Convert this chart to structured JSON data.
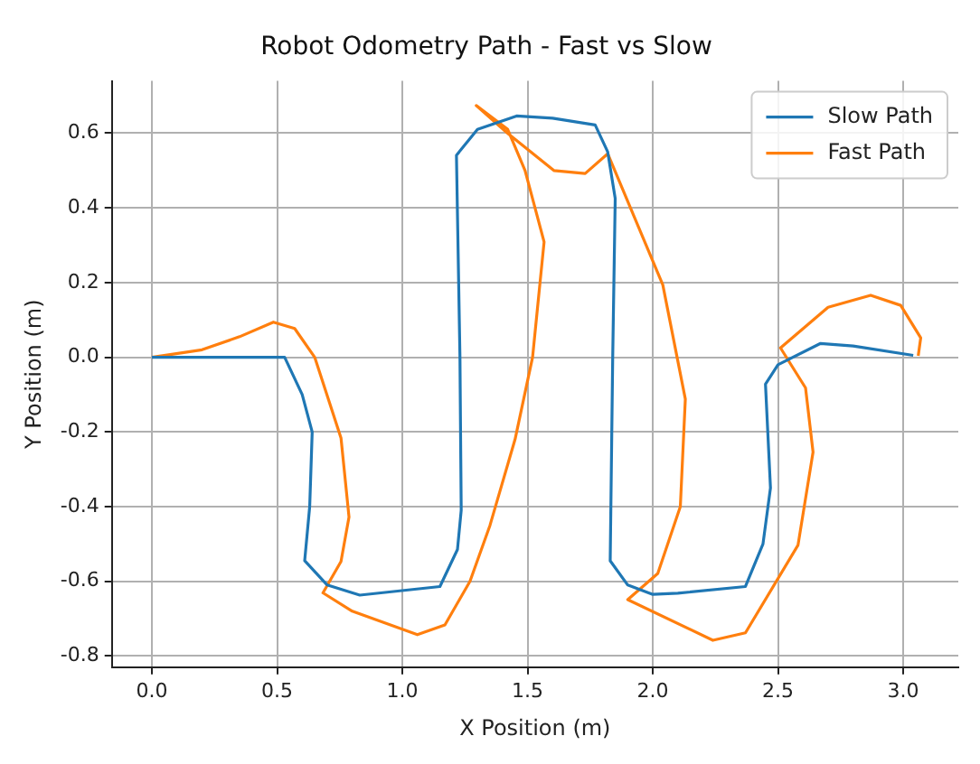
{
  "chart_data": {
    "type": "line",
    "title": "Robot Odometry Path - Fast vs Slow",
    "xlabel": "X Position (m)",
    "ylabel": "Y Position (m)",
    "xlim": [
      -0.16,
      3.22
    ],
    "ylim": [
      -0.83,
      0.74
    ],
    "xticks": [
      {
        "value": 0,
        "label": "0.0"
      },
      0.5,
      {
        "value": 1,
        "label": "1.0"
      },
      1.5,
      {
        "value": 2,
        "label": "2.0"
      },
      2.5,
      {
        "value": 3,
        "label": "3.0"
      }
    ],
    "yticks": [
      -0.8,
      -0.6,
      -0.4,
      -0.2,
      {
        "value": 0,
        "label": "0.0"
      },
      0.2,
      0.4,
      0.6
    ],
    "grid": true,
    "legend": "top right",
    "marker": "none",
    "line_style": "solid",
    "series": [
      {
        "name": "Slow Path",
        "color": "#1f77b4",
        "x": [
          0,
          0.53,
          0.6,
          0.64,
          0.63,
          0.61,
          0.7,
          0.83,
          1.15,
          1.22,
          1.235,
          1.23,
          1.216,
          1.3,
          1.456,
          1.6,
          1.77,
          1.82,
          1.85,
          1.84,
          1.83,
          1.9,
          2.0,
          2.1,
          2.37,
          2.44,
          2.47,
          2.45,
          2.5,
          2.67,
          2.8,
          3.04
        ],
        "values": [
          0,
          0,
          -0.1,
          -0.2,
          -0.4,
          -0.545,
          -0.61,
          -0.637,
          -0.614,
          -0.515,
          -0.41,
          0.0,
          0.541,
          0.61,
          0.646,
          0.64,
          0.622,
          0.55,
          0.425,
          0.0,
          -0.545,
          -0.61,
          -0.635,
          -0.632,
          -0.614,
          -0.5,
          -0.35,
          -0.072,
          -0.02,
          0.037,
          0.03,
          0.005
        ]
      },
      {
        "name": "Fast Path",
        "color": "#ff7f0e",
        "x": [
          0,
          0.2,
          0.35,
          0.485,
          0.57,
          0.65,
          0.755,
          0.787,
          0.755,
          0.683,
          0.8,
          1.06,
          1.17,
          1.27,
          1.35,
          1.45,
          1.52,
          1.566,
          1.49,
          1.42,
          1.295,
          1.42,
          1.605,
          1.73,
          1.82,
          2.04,
          2.13,
          2.11,
          2.02,
          1.9,
          2.24,
          2.37,
          2.58,
          2.64,
          2.61,
          2.51,
          2.7,
          2.87,
          2.99,
          3.07,
          3.06
        ],
        "values": [
          0,
          0.02,
          0.055,
          0.094,
          0.077,
          0.0,
          -0.216,
          -0.428,
          -0.547,
          -0.631,
          -0.68,
          -0.743,
          -0.717,
          -0.6,
          -0.45,
          -0.22,
          0.0,
          0.309,
          0.5,
          0.611,
          0.674,
          0.6,
          0.5,
          0.492,
          0.545,
          0.194,
          -0.112,
          -0.4,
          -0.579,
          -0.649,
          -0.758,
          -0.738,
          -0.503,
          -0.254,
          -0.082,
          0.025,
          0.134,
          0.166,
          0.139,
          0.052,
          0.004
        ]
      }
    ]
  }
}
